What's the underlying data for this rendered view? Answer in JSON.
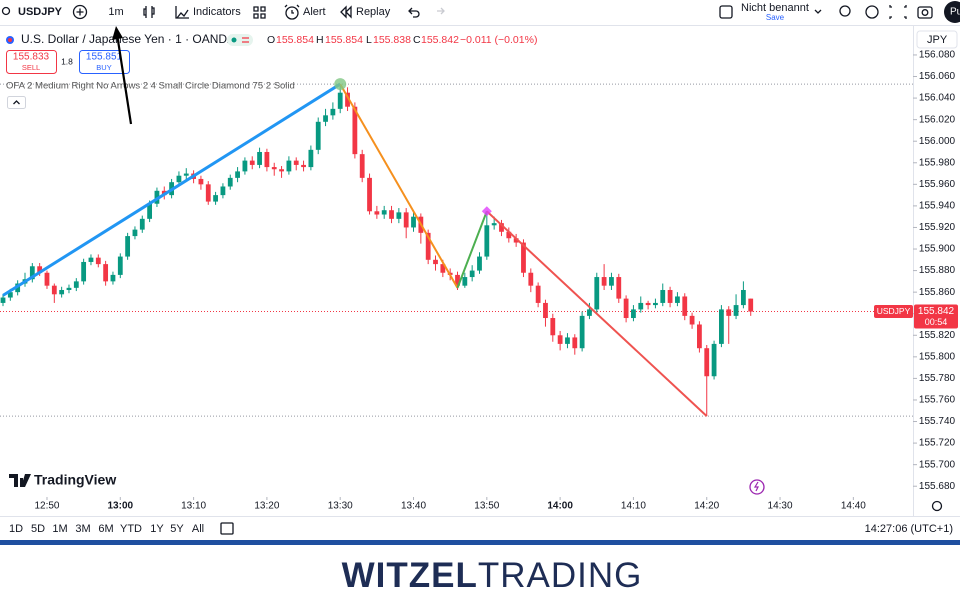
{
  "toolbar": {
    "symbol": "USDJPY",
    "interval": "1m",
    "indicators": "Indicators",
    "alert": "Alert",
    "replay": "Replay",
    "layout_name": "Nicht benannt",
    "save": "Save",
    "user": "Pu"
  },
  "legend": {
    "title": "U.S. Dollar / Japanese Yen · 1 · OANDA",
    "o_label": "O",
    "h_label": "H",
    "l_label": "L",
    "c_label": "C",
    "change": "−0.011 (−0.01%)",
    "sell_price": "155.833",
    "sell": "SELL",
    "spread": 1.8,
    "buy_price": "155.851",
    "buy": "BUY",
    "indicator": "OFA 2 Medium Right No Arrows 2 4 Small Circle Diamond 75 2 Solid"
  },
  "chart_data": {
    "type": "candlestick",
    "currency": "JPY",
    "watermark": "TradingView",
    "countdown": "00:54",
    "up_color": "#089981",
    "down_color": "#f23645",
    "xlim": [
      "12:44",
      "14:48"
    ],
    "xticks": [
      "12:50",
      "13:00",
      "13:10",
      "13:20",
      "13:30",
      "13:40",
      "13:50",
      "14:00",
      "14:10",
      "14:20",
      "14:30",
      "14:40"
    ],
    "ylim": [
      155.67,
      156.105
    ],
    "yticks": [
      {
        "value": 156.08,
        "label": "156.080"
      },
      {
        "value": 156.06,
        "label": "156.060"
      },
      {
        "value": 156.04,
        "label": "156.040"
      },
      {
        "value": 156.02,
        "label": "156.020"
      },
      {
        "value": 156.0,
        "label": "156.000"
      },
      {
        "value": 155.98,
        "label": "155.980"
      },
      {
        "value": 155.96,
        "label": "155.960"
      },
      {
        "value": 155.94,
        "label": "155.940"
      },
      {
        "value": 155.92,
        "label": "155.920"
      },
      {
        "value": 155.9,
        "label": "155.900"
      },
      {
        "value": 155.88,
        "label": "155.880"
      },
      {
        "value": 155.86,
        "label": "155.860"
      },
      {
        "value": 155.84,
        "label": "155.840"
      },
      {
        "value": 155.82,
        "label": "155.820"
      },
      {
        "value": 155.8,
        "label": "155.800"
      },
      {
        "value": 155.78,
        "label": "155.780"
      },
      {
        "value": 155.76,
        "label": "155.760"
      },
      {
        "value": 155.74,
        "label": "155.740"
      },
      {
        "value": 155.72,
        "label": "155.720"
      },
      {
        "value": 155.7,
        "label": "155.700"
      },
      {
        "value": 155.68,
        "label": "155.680"
      }
    ],
    "x": [
      "12:44",
      "12:45",
      "12:46",
      "12:47",
      "12:48",
      "12:49",
      "12:50",
      "12:51",
      "12:52",
      "12:53",
      "12:54",
      "12:55",
      "12:56",
      "12:57",
      "12:58",
      "12:59",
      "13:00",
      "13:01",
      "13:02",
      "13:03",
      "13:04",
      "13:05",
      "13:06",
      "13:07",
      "13:08",
      "13:09",
      "13:10",
      "13:11",
      "13:12",
      "13:13",
      "13:14",
      "13:15",
      "13:16",
      "13:17",
      "13:18",
      "13:19",
      "13:20",
      "13:21",
      "13:22",
      "13:23",
      "13:24",
      "13:25",
      "13:26",
      "13:27",
      "13:28",
      "13:29",
      "13:30",
      "13:31",
      "13:32",
      "13:33",
      "13:34",
      "13:35",
      "13:36",
      "13:37",
      "13:38",
      "13:39",
      "13:40",
      "13:41",
      "13:42",
      "13:43",
      "13:44",
      "13:45",
      "13:46",
      "13:47",
      "13:48",
      "13:49",
      "13:50",
      "13:51",
      "13:52",
      "13:53",
      "13:54",
      "13:55",
      "13:56",
      "13:57",
      "13:58",
      "13:59",
      "14:00",
      "14:01",
      "14:02",
      "14:03",
      "14:04",
      "14:05",
      "14:06",
      "14:07",
      "14:08",
      "14:09",
      "14:10",
      "14:11",
      "14:12",
      "14:13",
      "14:14",
      "14:15",
      "14:16",
      "14:17",
      "14:18",
      "14:19",
      "14:20",
      "14:21",
      "14:22",
      "14:23",
      "14:24",
      "14:25",
      "14:26"
    ],
    "open": [
      155.85,
      155.855,
      155.86,
      155.868,
      155.872,
      155.884,
      155.878,
      155.866,
      155.858,
      155.862,
      155.864,
      155.87,
      155.888,
      155.892,
      155.886,
      155.87,
      155.876,
      155.893,
      155.912,
      155.918,
      155.928,
      155.942,
      155.954,
      155.95,
      155.962,
      155.968,
      155.97,
      155.965,
      155.96,
      155.944,
      155.95,
      155.958,
      155.966,
      155.972,
      155.982,
      155.978,
      155.99,
      155.976,
      155.974,
      155.972,
      155.982,
      155.978,
      155.976,
      155.992,
      156.018,
      156.024,
      156.03,
      156.045,
      156.032,
      155.988,
      155.966,
      155.935,
      155.932,
      155.936,
      155.928,
      155.934,
      155.92,
      155.93,
      155.915,
      155.89,
      155.886,
      155.878,
      155.876,
      155.866,
      155.874,
      155.88,
      155.893,
      155.922,
      155.924,
      155.916,
      155.91,
      155.906,
      155.878,
      155.866,
      155.85,
      155.836,
      155.82,
      155.812,
      155.818,
      155.808,
      155.838,
      155.844,
      155.874,
      155.866,
      155.874,
      155.854,
      155.836,
      155.844,
      155.85,
      155.848,
      155.85,
      155.862,
      155.85,
      155.856,
      155.838,
      155.83,
      155.808,
      155.782,
      155.812,
      155.844,
      155.838,
      155.848,
      155.854
    ],
    "high": [
      155.858,
      155.863,
      155.871,
      155.878,
      155.887,
      155.887,
      155.88,
      155.868,
      155.865,
      155.867,
      155.873,
      155.891,
      155.895,
      155.895,
      155.889,
      155.879,
      155.896,
      155.915,
      155.921,
      155.931,
      155.945,
      155.957,
      155.958,
      155.965,
      155.972,
      155.975,
      155.973,
      155.968,
      155.963,
      155.953,
      155.961,
      155.969,
      155.976,
      155.985,
      155.986,
      155.994,
      155.993,
      155.98,
      155.977,
      155.986,
      155.985,
      155.982,
      155.996,
      156.022,
      156.03,
      156.036,
      156.053,
      156.05,
      156.036,
      155.992,
      155.97,
      155.94,
      155.94,
      155.94,
      155.938,
      155.938,
      155.934,
      155.933,
      155.918,
      155.894,
      155.89,
      155.882,
      155.879,
      155.878,
      155.885,
      155.897,
      155.935,
      155.93,
      155.927,
      155.92,
      155.914,
      155.909,
      155.882,
      155.869,
      155.853,
      155.84,
      155.824,
      155.822,
      155.821,
      155.842,
      155.85,
      155.878,
      155.886,
      155.878,
      155.877,
      155.857,
      155.848,
      155.856,
      155.852,
      155.854,
      155.868,
      155.865,
      155.86,
      155.859,
      155.841,
      155.833,
      155.811,
      155.815,
      155.848,
      155.847,
      155.858,
      155.87,
      155.854
    ],
    "low": [
      155.847,
      155.852,
      155.857,
      155.865,
      155.869,
      155.875,
      155.863,
      155.85,
      155.855,
      155.859,
      155.861,
      155.867,
      155.885,
      155.883,
      155.866,
      155.867,
      155.873,
      155.89,
      155.909,
      155.915,
      155.925,
      155.939,
      155.946,
      155.947,
      155.959,
      155.964,
      155.961,
      155.955,
      155.941,
      155.941,
      155.947,
      155.955,
      155.962,
      155.969,
      155.974,
      155.975,
      155.972,
      155.968,
      155.966,
      155.969,
      155.973,
      155.972,
      155.973,
      155.988,
      156.014,
      156.02,
      156.026,
      156.028,
      155.984,
      155.962,
      155.932,
      155.928,
      155.928,
      155.924,
      155.924,
      155.91,
      155.916,
      155.905,
      155.886,
      155.88,
      155.874,
      155.871,
      155.862,
      155.864,
      155.87,
      155.877,
      155.89,
      155.918,
      155.912,
      155.906,
      155.902,
      155.874,
      155.86,
      155.846,
      155.828,
      155.814,
      155.806,
      155.808,
      155.802,
      155.805,
      155.835,
      155.841,
      155.862,
      155.862,
      155.85,
      155.832,
      155.833,
      155.841,
      155.844,
      155.845,
      155.847,
      155.846,
      155.847,
      155.834,
      155.826,
      155.804,
      155.745,
      155.779,
      155.809,
      155.812,
      155.835,
      155.845,
      155.838
    ],
    "close": [
      155.855,
      155.86,
      155.868,
      155.872,
      155.884,
      155.878,
      155.866,
      155.858,
      155.862,
      155.864,
      155.87,
      155.888,
      155.892,
      155.886,
      155.87,
      155.876,
      155.893,
      155.912,
      155.918,
      155.928,
      155.942,
      155.954,
      155.95,
      155.962,
      155.968,
      155.97,
      155.965,
      155.96,
      155.944,
      155.95,
      155.958,
      155.966,
      155.972,
      155.982,
      155.978,
      155.99,
      155.976,
      155.974,
      155.972,
      155.982,
      155.978,
      155.976,
      155.992,
      156.018,
      156.024,
      156.03,
      156.045,
      156.032,
      155.988,
      155.966,
      155.935,
      155.932,
      155.936,
      155.928,
      155.934,
      155.92,
      155.93,
      155.915,
      155.89,
      155.886,
      155.878,
      155.876,
      155.866,
      155.874,
      155.88,
      155.893,
      155.922,
      155.924,
      155.916,
      155.91,
      155.906,
      155.878,
      155.866,
      155.85,
      155.836,
      155.82,
      155.812,
      155.818,
      155.808,
      155.838,
      155.844,
      155.874,
      155.866,
      155.874,
      155.854,
      155.836,
      155.844,
      155.85,
      155.848,
      155.85,
      155.862,
      155.85,
      155.856,
      155.838,
      155.83,
      155.808,
      155.782,
      155.812,
      155.844,
      155.838,
      155.848,
      155.862,
      155.842
    ],
    "levels": [
      156.053,
      155.745
    ],
    "drawings": [
      {
        "color": "#2196f3",
        "points": [
          {
            "time": "12:44",
            "price": 155.857
          },
          {
            "time": "13:30",
            "price": 156.053
          }
        ]
      },
      {
        "color": "#f5901e",
        "points": [
          {
            "time": "13:30",
            "price": 156.053
          },
          {
            "time": "13:46",
            "price": 155.864
          }
        ]
      },
      {
        "color": "#4caf50",
        "points": [
          {
            "time": "13:46",
            "price": 155.864
          },
          {
            "time": "13:50",
            "price": 155.935
          }
        ]
      },
      {
        "color": "#ef5350",
        "points": [
          {
            "time": "13:50",
            "price": 155.935
          },
          {
            "time": "14:20",
            "price": 155.745
          }
        ]
      }
    ],
    "markers": [
      {
        "shape": "circle",
        "color": "#81c784",
        "time": "13:30",
        "price": 156.053
      },
      {
        "shape": "diamond",
        "color": "#e040fb",
        "time": "13:50",
        "price": 155.935
      }
    ]
  },
  "range_bar": {
    "ranges": [
      "1D",
      "5D",
      "1M",
      "3M",
      "6M",
      "YTD",
      "1Y",
      "5Y",
      "All"
    ],
    "clock": "14:27:06 (UTC+1)"
  },
  "brand": {
    "first": "WITZEL",
    "second": "TRADING"
  }
}
